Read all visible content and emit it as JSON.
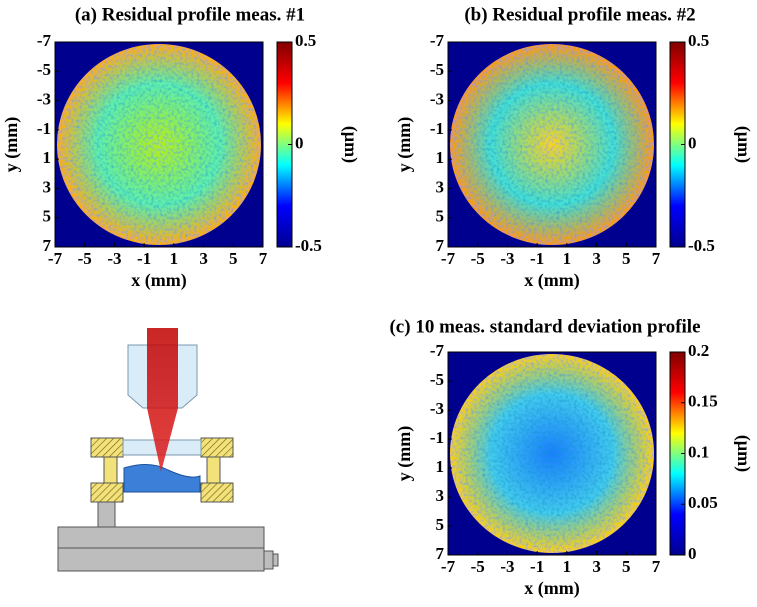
{
  "chart_data": [
    {
      "type": "heatmap",
      "title": "(a) Residual profile meas. #1",
      "xlabel": "x (mm)",
      "ylabel": "y (mm)",
      "colorbar_label": "(µm)",
      "xlim": [
        -7,
        7
      ],
      "ylim": [
        -7,
        7
      ],
      "y_inverted": true,
      "xticks": [
        -7,
        -5,
        -3,
        -1,
        1,
        3,
        5,
        7
      ],
      "yticks": [
        -7,
        -5,
        -3,
        -1,
        1,
        3,
        5,
        7
      ],
      "clim": [
        -0.5,
        0.5
      ],
      "cticks": [
        -0.5,
        0,
        0.5
      ],
      "colormap": "jet"
    },
    {
      "type": "heatmap",
      "title": "(b) Residual profile meas. #2",
      "xlabel": "x (mm)",
      "ylabel": "y (mm)",
      "colorbar_label": "(µm)",
      "xlim": [
        -7,
        7
      ],
      "ylim": [
        -7,
        7
      ],
      "y_inverted": true,
      "xticks": [
        -7,
        -5,
        -3,
        -1,
        1,
        3,
        5,
        7
      ],
      "yticks": [
        -7,
        -5,
        -3,
        -1,
        1,
        3,
        5,
        7
      ],
      "clim": [
        -0.5,
        0.5
      ],
      "cticks": [
        -0.5,
        0,
        0.5
      ],
      "colormap": "jet"
    },
    {
      "type": "heatmap",
      "title": "(c)  10 meas. standard deviation profile",
      "xlabel": "x (mm)",
      "ylabel": "y (mm)",
      "colorbar_label": "(µm)",
      "xlim": [
        -7,
        7
      ],
      "ylim": [
        -7,
        7
      ],
      "y_inverted": true,
      "xticks": [
        -7,
        -5,
        -3,
        -1,
        1,
        3,
        5,
        7
      ],
      "yticks": [
        -7,
        -5,
        -3,
        -1,
        1,
        3,
        5,
        7
      ],
      "clim": [
        0,
        0.2
      ],
      "cticks": [
        0,
        0.05,
        0.1,
        0.15,
        0.2
      ],
      "colormap": "jet"
    }
  ]
}
